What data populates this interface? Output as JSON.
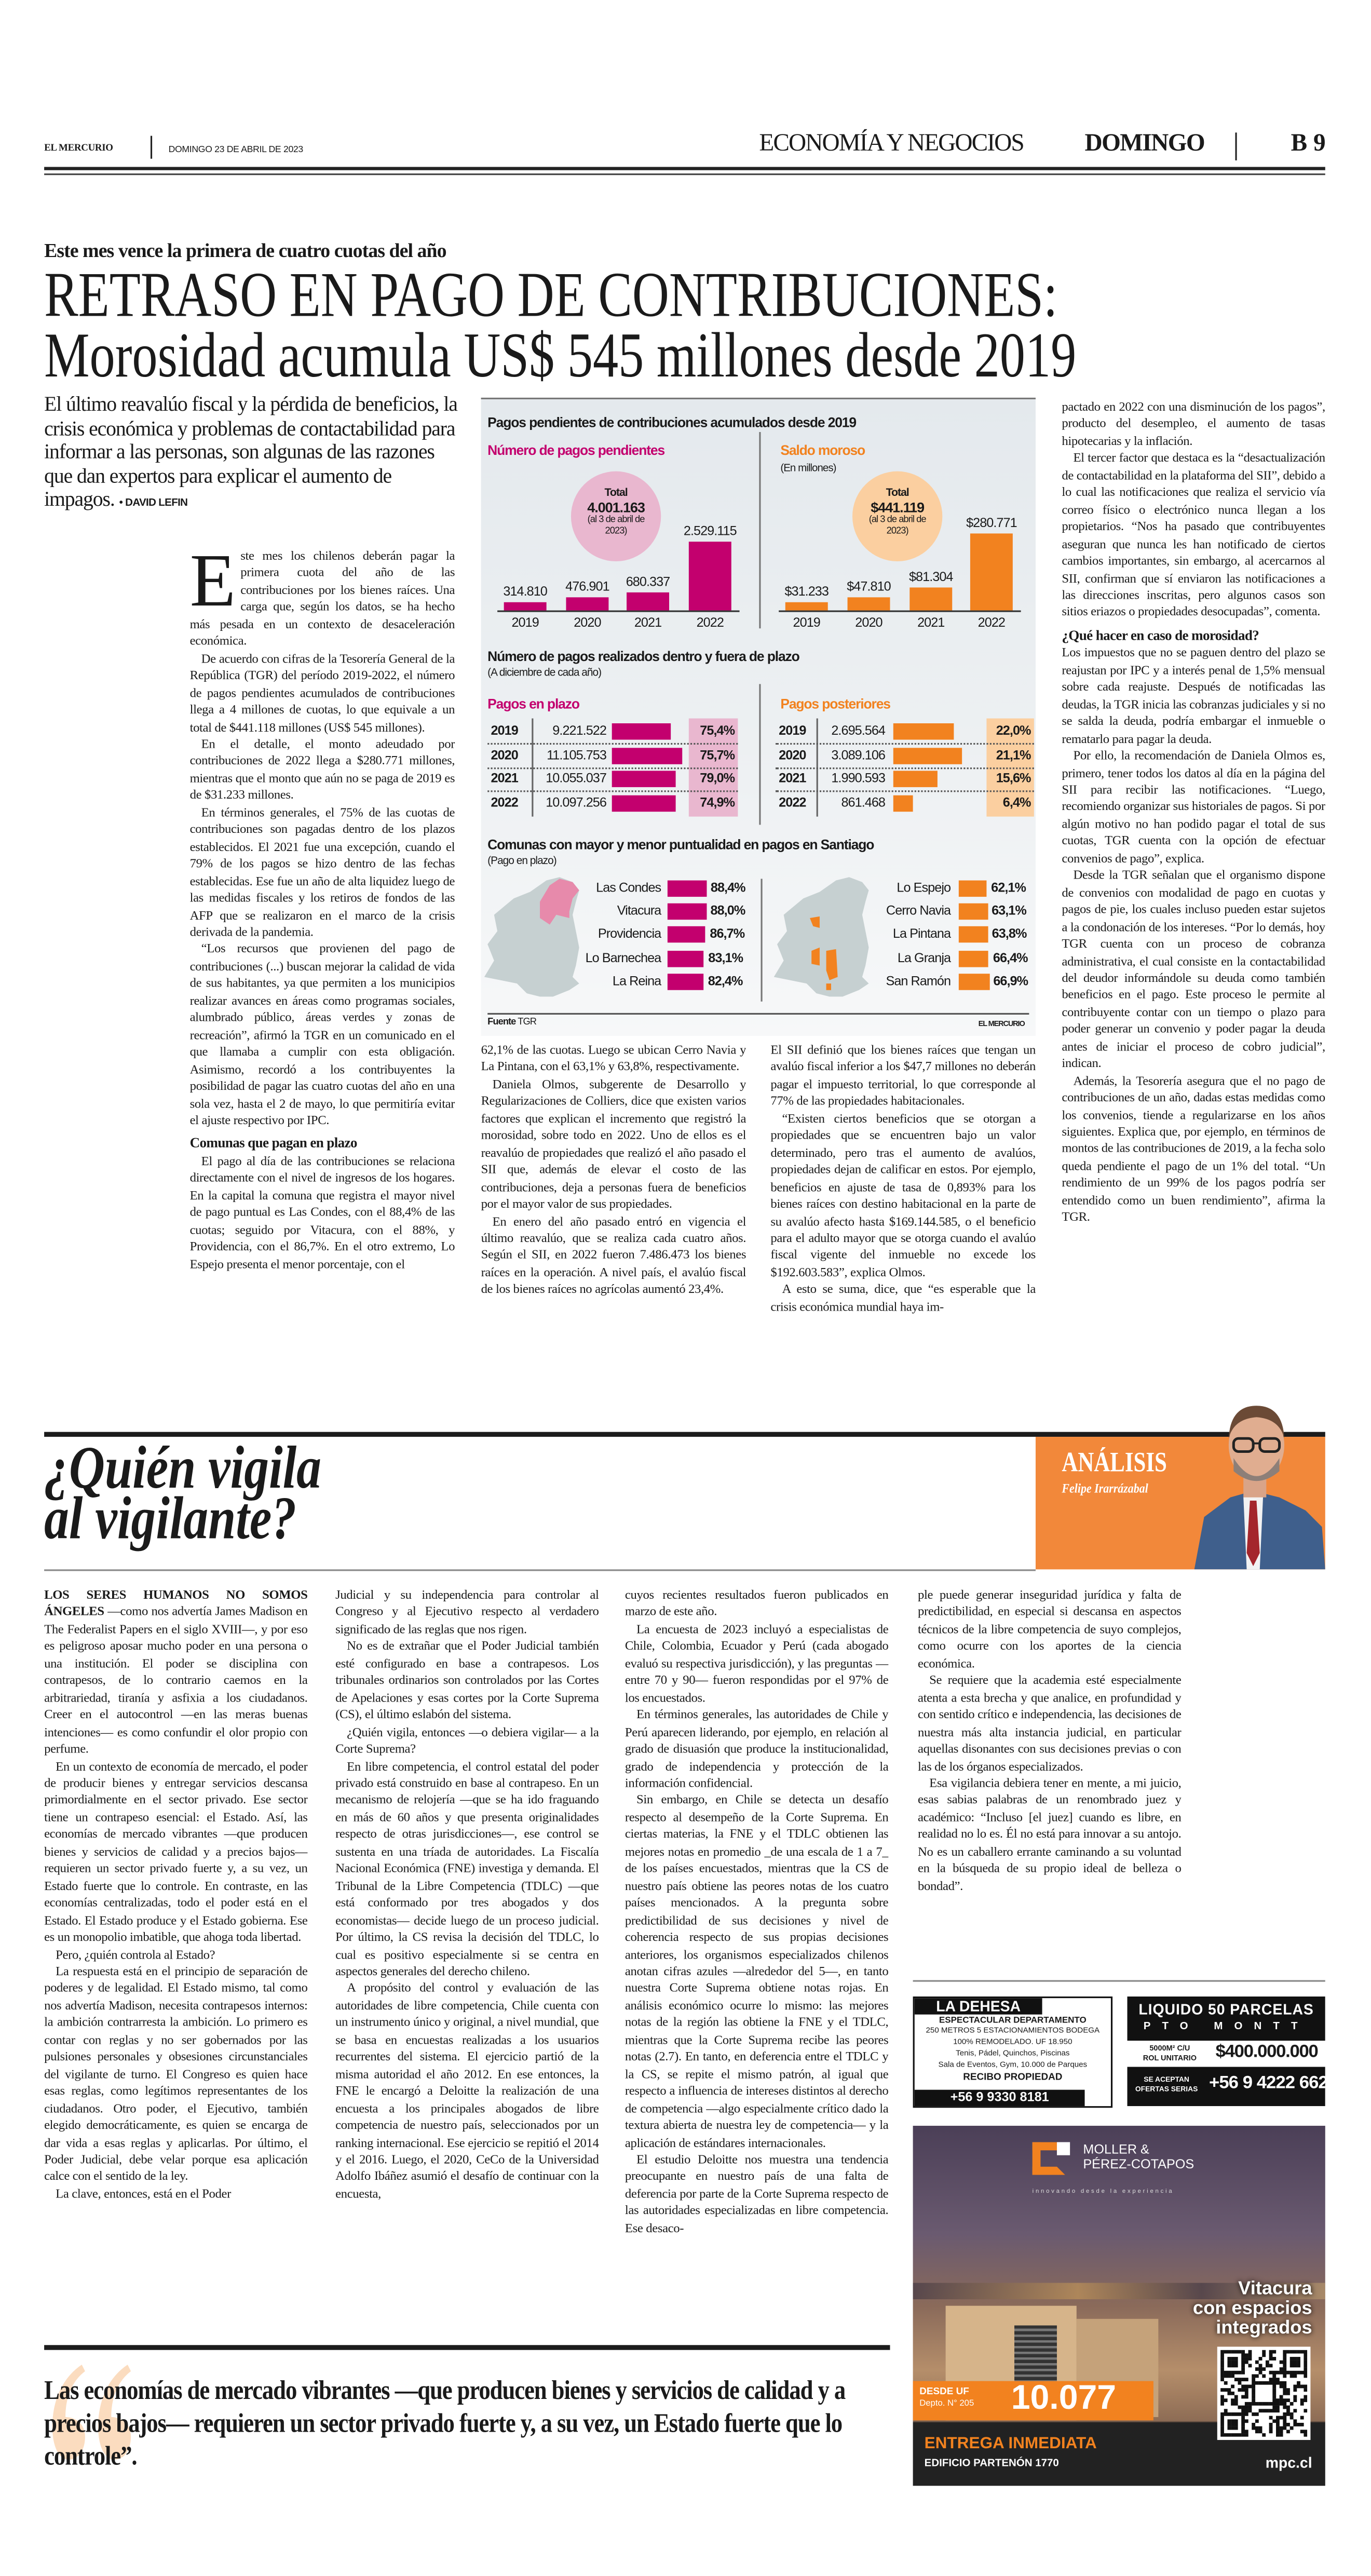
{
  "header": {
    "masthead": "EL MERCURIO",
    "date": "DOMINGO 23 DE ABRIL DE 2023",
    "section": "ECONOMÍA Y NEGOCIOS",
    "day": "DOMINGO",
    "page": "B 9"
  },
  "article1": {
    "kicker": "Este mes vence la primera de cuatro cuotas del año",
    "headline_line1": "RETRASO EN PAGO DE CONTRIBUCIONES:",
    "headline_line2": "Morosidad acumula US$ 545 millones desde 2019",
    "deck": "El último reavalúo fiscal y la pérdida de beneficios, la crisis económica y problemas de contactabilidad para informar a las personas, son algunas de las razones que dan expertos para explicar el aumento de impagos.",
    "byline": "• DAVID LEFIN",
    "drop_cap": "E",
    "col1": [
      "ste mes los chilenos deberán pagar la primera cuota del año de las contribuciones por los bienes raíces. Una carga que, según los datos, se ha hecho más pesada en un contexto de desaceleración económica.",
      "De acuerdo con cifras de la Tesorería General de la República (TGR) del período 2019-2022, el número de pagos pendientes acumulados de contribuciones llega a 4 millones de cuotas, lo que equivale a un total de $441.118 millones (US$ 545 millones).",
      "En el detalle, el monto adeudado por contribuciones de 2022 llega a $280.771 millones, mientras que el monto que aún no se paga de 2019 es de $31.233 millones.",
      "En términos generales, el 75% de las cuotas de contribuciones son pagadas dentro de los plazos establecidos. El 2021 fue una excepción, cuando el 79% de los pagos se hizo dentro de las fechas establecidas. Ese fue un año de alta liquidez luego de las medidas fiscales y los retiros de fondos de las AFP que se realizaron en el marco de la crisis derivada de la pandemia.",
      "“Los recursos que provienen del pago de contribuciones (...) buscan mejorar la calidad de vida de sus habitantes, ya que permiten a los municipios realizar avances en áreas como programas sociales, alumbrado público, áreas verdes y zonas de recreación”, afirmó la TGR en un comunicado en el que llamaba a cumplir con esta obligación. Asimismo, recordó a los contribuyentes la posibilidad de pagar las cuatro cuotas del año en una sola vez, hasta el 2 de mayo, lo que permitiría evitar el ajuste respectivo por IPC."
    ],
    "subhead1": "Comunas que pagan en plazo",
    "col1b": [
      "El pago al día de las contribuciones se relaciona directamente con el nivel de ingresos de los hogares. En la capital la comuna que registra el mayor nivel de pago puntual es Las Condes, con el 88,4% de las cuotas; seguido por Vitacura, con el 88%, y Providencia, con el 86,7%. En el otro extremo, Lo Espejo presenta el menor porcentaje, con el"
    ],
    "col2": [
      "62,1% de las cuotas. Luego se ubican Cerro Navia y La Pintana, con el 63,1% y 63,8%, respectivamente.",
      "Daniela Olmos, subgerente de Desarrollo y Regularizaciones de Colliers, dice que existen varios factores que explican el incremento que registró la morosidad, sobre todo en 2022. Uno de ellos es el reavalúo de propiedades que realizó el año pasado el SII que, además de elevar el costo de las contribuciones, deja a personas fuera de beneficios por el mayor valor de sus propiedades.",
      "En enero del año pasado entró en vigencia el último reavalúo, que se realiza cada cuatro años. Según el SII, en 2022 fueron 7.486.473 los bienes raíces en la operación. A nivel país, el avalúo fiscal de los bienes raíces no agrícolas aumentó 23,4%."
    ],
    "col3": [
      "El SII definió que los bienes raíces que tengan un avalúo fiscal inferior a los $47,7 millones no deberán pagar el impuesto territorial, lo que corresponde al 77% de las propiedades habitacionales.",
      "“Existen ciertos beneficios que se otorgan a propiedades que se encuentren bajo un valor determinado, pero tras el aumento de avalúos, propiedades dejan de calificar en estos. Por ejemplo, beneficios en ajuste de tasa de 0,893% para los bienes raíces con destino habitacional en la parte de su avalúo afecto hasta $169.144.585, o el beneficio para el adulto mayor que se otorga cuando el avalúo fiscal vigente del inmueble no excede los $192.603.583”, explica Olmos.",
      "A esto se suma, dice, que “es esperable que la crisis económica mundial haya im-"
    ],
    "col4": [
      "pactado en 2022 con una disminución de los pagos”, producto del desempleo, el aumento de tasas hipotecarias y la inflación.",
      "El tercer factor que destaca es la “desactualización de contactabilidad en la plataforma del SII”, debido a lo cual las notificaciones que realiza el servicio vía correo físico o electrónico nunca llegan a los propietarios. “Nos ha pasado que contribuyentes aseguran que nunca les han notificado de ciertos cambios importantes, sin embargo, al acercarnos al SII, confirman que sí enviaron las notificaciones a las direcciones inscritas, pero algunos casos son sitios eriazos o propiedades desocupadas”, comenta."
    ],
    "subhead2": "¿Qué hacer en caso de morosidad?",
    "col4b": [
      "Los impuestos que no se paguen dentro del plazo se reajustan por IPC y a interés penal de 1,5% mensual sobre cada reajuste. Después de notificadas las deudas, la TGR inicia las cobranzas judiciales y si no se salda la deuda, podría embargar el inmueble o rematarlo para pagar la deuda.",
      "Por ello, la recomendación de Daniela Olmos es, primero, tener todos los datos al día en la página del SII para recibir las notificaciones. “Luego, recomiendo organizar sus historiales de pagos. Si por algún motivo no han podido pagar el total de sus cuotas, TGR cuenta con la opción de efectuar convenios de pago”, explica.",
      "Desde la TGR señalan que el organismo dispone de convenios con modalidad de pago en cuotas y pagos de pie, los cuales incluso pueden estar sujetos a la condonación de los intereses. “Por lo demás, hoy TGR cuenta con un proceso de cobranza administrativa, el cual consiste en la contactabilidad del deudor informándole su deuda como también beneficios en el pago. Este proceso le permite al contribuyente contar con un tiempo o plazo para poder generar un convenio y poder pagar la deuda antes de iniciar el proceso de cobro judicial”, indican.",
      "Además, la Tesorería asegura que el no pago de contribuciones de un año, dadas estas medidas como los convenios, tiende a regularizarse en los años siguientes. Explica que, por ejemplo, en términos de montos de las contribuciones de 2019, a la fecha solo queda pendiente el pago de un 1% del total. “Un rendimiento de un 99% de los pagos podría ser entendido como un buen rendimiento”, afirma la TGR."
    ]
  },
  "infographic": {
    "title": "Pagos pendientes de contribuciones acumulados desde 2019",
    "pending_count": {
      "title": "Número de pagos pendientes",
      "total_label": "Total",
      "total_value": "4.001.163",
      "total_note": "(al 3 de abril de 2023)",
      "years": [
        "2019",
        "2020",
        "2021",
        "2022"
      ],
      "values": [
        314810,
        476901,
        680337,
        2529115
      ],
      "labels": [
        "314.810",
        "476.901",
        "680.337",
        "2.529.115"
      ]
    },
    "overdue_balance": {
      "title": "Saldo moroso",
      "unit": "(En millones)",
      "total_label": "Total",
      "total_value": "$441.119",
      "total_note": "(al 3 de abril de 2023)",
      "years": [
        "2019",
        "2020",
        "2021",
        "2022"
      ],
      "values": [
        31233,
        47810,
        81304,
        280771
      ],
      "labels": [
        "$31.233",
        "$47.810",
        "$81.304",
        "$280.771"
      ]
    },
    "payments_title": "Número de pagos realizados dentro y fuera de plazo",
    "payments_subtitle": "(A diciembre de cada año)",
    "on_time": {
      "title": "Pagos en plazo",
      "rows": [
        {
          "year": "2019",
          "count": "9.221.522",
          "value": 9221522,
          "pct": "75,4%"
        },
        {
          "year": "2020",
          "count": "11.105.753",
          "value": 11105753,
          "pct": "75,7%"
        },
        {
          "year": "2021",
          "count": "10.055.037",
          "value": 10055037,
          "pct": "79,0%"
        },
        {
          "year": "2022",
          "count": "10.097.256",
          "value": 10097256,
          "pct": "74,9%"
        }
      ]
    },
    "late": {
      "title": "Pagos posteriores",
      "rows": [
        {
          "year": "2019",
          "count": "2.695.564",
          "value": 2695564,
          "pct": "22,0%"
        },
        {
          "year": "2020",
          "count": "3.089.106",
          "value": 3089106,
          "pct": "21,1%"
        },
        {
          "year": "2021",
          "count": "1.990.593",
          "value": 1990593,
          "pct": "15,6%"
        },
        {
          "year": "2022",
          "count": "861.468",
          "value": 861468,
          "pct": "6,4%"
        }
      ]
    },
    "communes_title": "Comunas con mayor y menor puntualidad en pagos en Santiago",
    "communes_subtitle": "(Pago en plazo)",
    "best": [
      {
        "name": "Las Condes",
        "value": 88.4,
        "pct": "88,4%"
      },
      {
        "name": "Vitacura",
        "value": 88.0,
        "pct": "88,0%"
      },
      {
        "name": "Providencia",
        "value": 86.7,
        "pct": "86,7%"
      },
      {
        "name": "Lo Barnechea",
        "value": 83.1,
        "pct": "83,1%"
      },
      {
        "name": "La Reina",
        "value": 82.4,
        "pct": "82,4%"
      }
    ],
    "worst": [
      {
        "name": "Lo Espejo",
        "value": 62.1,
        "pct": "62,1%"
      },
      {
        "name": "Cerro Navia",
        "value": 63.1,
        "pct": "63,1%"
      },
      {
        "name": "La Pintana",
        "value": 63.8,
        "pct": "63,8%"
      },
      {
        "name": "La Granja",
        "value": 66.4,
        "pct": "66,4%"
      },
      {
        "name": "San Ramón",
        "value": 66.9,
        "pct": "66,9%"
      }
    ],
    "source_label": "Fuente",
    "source": "TGR",
    "credit": "EL MERCURIO",
    "colors": {
      "magenta": "#c3006e",
      "pink": "#e9b7cf",
      "orange": "#f2821f",
      "light_orange": "#fbcfa0",
      "map_gray": "#c6d0d1"
    }
  },
  "article2": {
    "headline_line1": "¿Quién vigila",
    "headline_line2": "al vigilante?",
    "section_label": "ANÁLISIS",
    "author": "Felipe Irarrázabal",
    "lead_caps": "LOS SERES HUMANOS NO SOMOS ÁNGELES",
    "col1": [
      "—como nos advertía James Madison en The Federalist Papers en el siglo XVIII—, y por eso es peligroso aposar mucho poder en una persona o una institución. El poder se disciplina con contrapesos, de lo contrario caemos en la arbitrariedad, tiranía y asfixia a los ciudadanos. Creer en el autocontrol —en las meras buenas intenciones— es como confundir el olor propio con perfume.",
      "En un contexto de economía de mercado, el poder de producir bienes y entregar servicios descansa primordialmente en el sector privado. Ese sector tiene un contrapeso esencial: el Estado. Así, las economías de mercado vibrantes —que producen bienes y servicios de calidad y a precios bajos— requieren un sector privado fuerte y, a su vez, un Estado fuerte que lo controle. En contraste, en las economías centralizadas, todo el poder está en el Estado. El Estado produce y el Estado gobierna. Ese es un monopolio imbatible, que ahoga toda libertad.",
      "Pero, ¿quién controla al Estado?",
      "La respuesta está en el principio de separación de poderes y de legalidad. El Estado mismo, tal como nos advertía Madison, necesita contrapesos internos: la ambición contrarresta la ambición. Lo primero es contar con reglas y no ser gobernados por las pulsiones personales y obsesiones circunstanciales del vigilante de turno. El Congreso es quien hace esas reglas, como legítimos representantes de los ciudadanos. Otro poder, el Ejecutivo, también elegido democráticamente, es quien se encarga de dar vida a esas reglas y aplicarlas. Por último, el Poder Judicial, debe velar porque esa aplicación calce con el sentido de la ley.",
      "La clave, entonces, está en el Poder"
    ],
    "col2": [
      "Judicial y su independencia para controlar al Congreso y al Ejecutivo respecto al verdadero significado de las reglas que nos rigen.",
      "No es de extrañar que el Poder Judicial también esté configurado en base a contrapesos. Los tribunales ordinarios son controlados por las Cortes de Apelaciones y esas cortes por la Corte Suprema (CS), el último eslabón del sistema.",
      "¿Quién vigila, entonces —o debiera vigilar— a la Corte Suprema?",
      "En libre competencia, el control estatal del poder privado está construido en base al contrapeso. En un mecanismo de relojería —que se ha ido fraguando en más de 60 años y que presenta originalidades respecto de otras jurisdicciones—, ese control se sustenta en una tríada de autoridades. La Fiscalía Nacional Económica (FNE) investiga y demanda. El Tribunal de la Libre Competencia (TDLC) —que está conformado por tres abogados y dos economistas— decide luego de un proceso judicial. Por último, la CS revisa la decisión del TDLC, lo cual es positivo especialmente si se centra en aspectos generales del derecho chileno.",
      "A propósito del control y evaluación de las autoridades de libre competencia, Chile cuenta con un instrumento único y original, a nivel mundial, que se basa en encuestas realizadas a los usuarios recurrentes del sistema. El ejercicio partió de la misma autoridad el año 2012. En ese entonces, la FNE le encargó a Deloitte la realización de una encuesta a los principales abogados de libre competencia de nuestro país, seleccionados por un ranking internacional. Ese ejercicio se repitió el 2014 y el 2016. Luego, el 2020, CeCo de la Universidad Adolfo Ibáñez asumió el desafío de continuar con la encuesta,"
    ],
    "col3": [
      "cuyos recientes resultados fueron publicados en marzo de este año.",
      "La encuesta de 2023 incluyó a especialistas de Chile, Colombia, Ecuador y Perú (cada abogado evaluó su respectiva jurisdicción), y las preguntas —entre 70 y 90— fueron respondidas por el 97% de los encuestados.",
      "En términos generales, las autoridades de Chile y Perú aparecen liderando, por ejemplo, en relación al grado de disuasión que produce la institucionalidad, grado de independencia y protección de la información confidencial.",
      "Sin embargo, en Chile se detecta un desafío respecto al desempeño de la Corte Suprema. En ciertas materias, la FNE y el TDLC obtienen las mejores notas en promedio _de una escala de 1 a 7_ de los países encuestados, mientras que la CS de nuestro país obtiene las peores notas de los cuatro países mencionados. A la pregunta sobre predictibilidad de sus decisiones y nivel de coherencia respecto de sus propias decisiones anteriores, los organismos especializados chilenos anotan cifras azules —alrededor del 5—, en tanto nuestra Corte Suprema obtiene notas rojas. En análisis económico ocurre lo mismo: las mejores notas de la región las obtiene la FNE y el TDLC, mientras que la Corte Suprema recibe las peores notas (2.7). En tanto, en deferencia entre el TDLC y la CS, se repite el mismo patrón, al igual que respecto a influencia de intereses distintos al derecho de competencia —algo especialmente crítico dado la textura abierta de nuestra ley de competencia— y la aplicación de estándares internacionales.",
      "El estudio Deloitte nos muestra una tendencia preocupante en nuestro país de una falta de deferencia por parte de la Corte Suprema respecto de las autoridades especializadas en libre competencia. Ese desaco-"
    ],
    "col4": [
      "ple puede generar inseguridad jurídica y falta de predictibilidad, en especial si descansa en aspectos técnicos de la libre competencia de suyo complejos, como ocurre con los aportes de la ciencia económica.",
      "Se requiere que la academia esté especialmente atenta a esta brecha y que analice, en profundidad y con sentido crítico e independencia, las decisiones de nuestra más alta instancia judicial, en particular aquellas disonantes con sus decisiones previas o con las de los órganos especializados.",
      "Esa vigilancia debiera tener en mente, a mi juicio, esas sabias palabras de un renombrado juez y académico: “Incluso [el juez] cuando es libre, en realidad no lo es. Él no está para innovar a su antojo. No es un caballero errante caminando a su voluntad en la búsqueda de su propio ideal de belleza o bondad”."
    ],
    "pull_quote": "Las economías de mercado vibrantes —que producen bienes y servicios de calidad y a precios bajos— requieren un sector privado fuerte y, a su vez, un Estado fuerte que lo controle”."
  },
  "ads": {
    "dehesa": {
      "title": "LA DEHESA",
      "line1": "ESPECTACULAR DEPARTAMENTO",
      "line2": "250 METROS 5 ESTACIONAMIENTOS BODEGA",
      "line3": "100% REMODELADO. UF 18.950",
      "line4": "Tenis, Pádel, Quinchos, Piscinas",
      "line5": "Sala de Eventos, Gym, 10.000 de Parques",
      "line6": "RECIBO PROPIEDAD",
      "phone": "+56 9 9330 8181"
    },
    "parcelas": {
      "title": "LIQUIDO 50 PARCELAS",
      "place": "PTO MONTT",
      "size": "5000M² C/U",
      "rol": "ROL UNITARIO",
      "price": "$400.000.000",
      "offers1": "SE ACEPTAN",
      "offers2": "OFERTAS SERIAS",
      "phone": "+56 9 4222 6624"
    },
    "mpc": {
      "brand1": "MOLLER &",
      "brand2": "PÉREZ-COTAPOS",
      "tagline": "innovando desde la experiencia",
      "claim1": "Vitacura",
      "claim2": "con espacios",
      "claim3": "integrados",
      "from": "DESDE UF",
      "unit": "Depto. N° 205",
      "price": "10.077",
      "delivery": "ENTREGA INMEDIATA",
      "building": "EDIFICIO PARTENÓN 1770",
      "url": "mpc.cl"
    }
  }
}
